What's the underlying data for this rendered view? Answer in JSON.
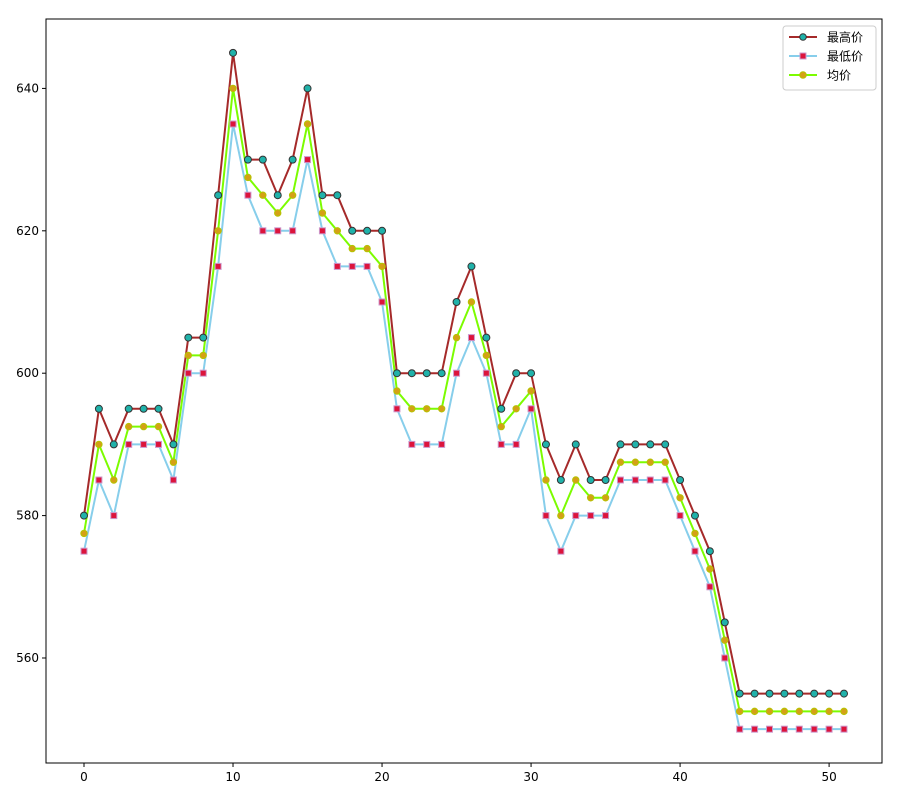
{
  "chart_data": {
    "type": "line",
    "x": [
      0,
      1,
      2,
      3,
      4,
      5,
      6,
      7,
      8,
      9,
      10,
      11,
      12,
      13,
      14,
      15,
      16,
      17,
      18,
      19,
      20,
      21,
      22,
      23,
      24,
      25,
      26,
      27,
      28,
      29,
      30,
      31,
      32,
      33,
      34,
      35,
      36,
      37,
      38,
      39,
      40,
      41,
      42,
      43,
      44,
      45,
      46,
      47,
      48,
      49,
      50,
      51
    ],
    "xlim": [
      -2.55,
      53.55
    ],
    "ylim": [
      545.25,
      649.75
    ],
    "xticks": [
      0,
      10,
      20,
      30,
      40,
      50
    ],
    "yticks": [
      560,
      580,
      600,
      620,
      640
    ],
    "grid": false,
    "legend_position": "top-right",
    "series": [
      {
        "name": "最高价",
        "line_color": "#a52a2a",
        "marker": "circle",
        "marker_face": "#20b2aa",
        "marker_edge": "#333333",
        "values": [
          580,
          595,
          590,
          595,
          595,
          595,
          590,
          605,
          605,
          625,
          645,
          630,
          630,
          625,
          630,
          640,
          625,
          625,
          620,
          620,
          620,
          600,
          600,
          600,
          600,
          610,
          615,
          605,
          595,
          600,
          600,
          590,
          585,
          590,
          585,
          585,
          590,
          590,
          590,
          590,
          585,
          580,
          575,
          565,
          555,
          555,
          555,
          555,
          555,
          555,
          555,
          555
        ]
      },
      {
        "name": "最低价",
        "line_color": "#87ceeb",
        "marker": "square",
        "marker_face": "#dc143c",
        "marker_edge": "#cc99cc",
        "values": [
          575,
          585,
          580,
          590,
          590,
          590,
          585,
          600,
          600,
          615,
          635,
          625,
          620,
          620,
          620,
          630,
          620,
          615,
          615,
          615,
          610,
          595,
          590,
          590,
          590,
          600,
          605,
          600,
          590,
          590,
          595,
          580,
          575,
          580,
          580,
          580,
          585,
          585,
          585,
          585,
          580,
          575,
          570,
          560,
          550,
          550,
          550,
          550,
          550,
          550,
          550,
          550
        ]
      },
      {
        "name": "均价",
        "line_color": "#7cfc00",
        "marker": "circle",
        "marker_face": "#d4a017",
        "marker_edge": "#b5c400",
        "values": [
          577.5,
          590,
          585,
          592.5,
          592.5,
          592.5,
          587.5,
          602.5,
          602.5,
          620,
          640,
          627.5,
          625,
          622.5,
          625,
          635,
          622.5,
          620,
          617.5,
          617.5,
          615,
          597.5,
          595,
          595,
          595,
          605,
          610,
          602.5,
          592.5,
          595,
          597.5,
          585,
          580,
          585,
          582.5,
          582.5,
          587.5,
          587.5,
          587.5,
          587.5,
          582.5,
          577.5,
          572.5,
          562.5,
          552.5,
          552.5,
          552.5,
          552.5,
          552.5,
          552.5,
          552.5,
          552.5
        ]
      }
    ]
  }
}
